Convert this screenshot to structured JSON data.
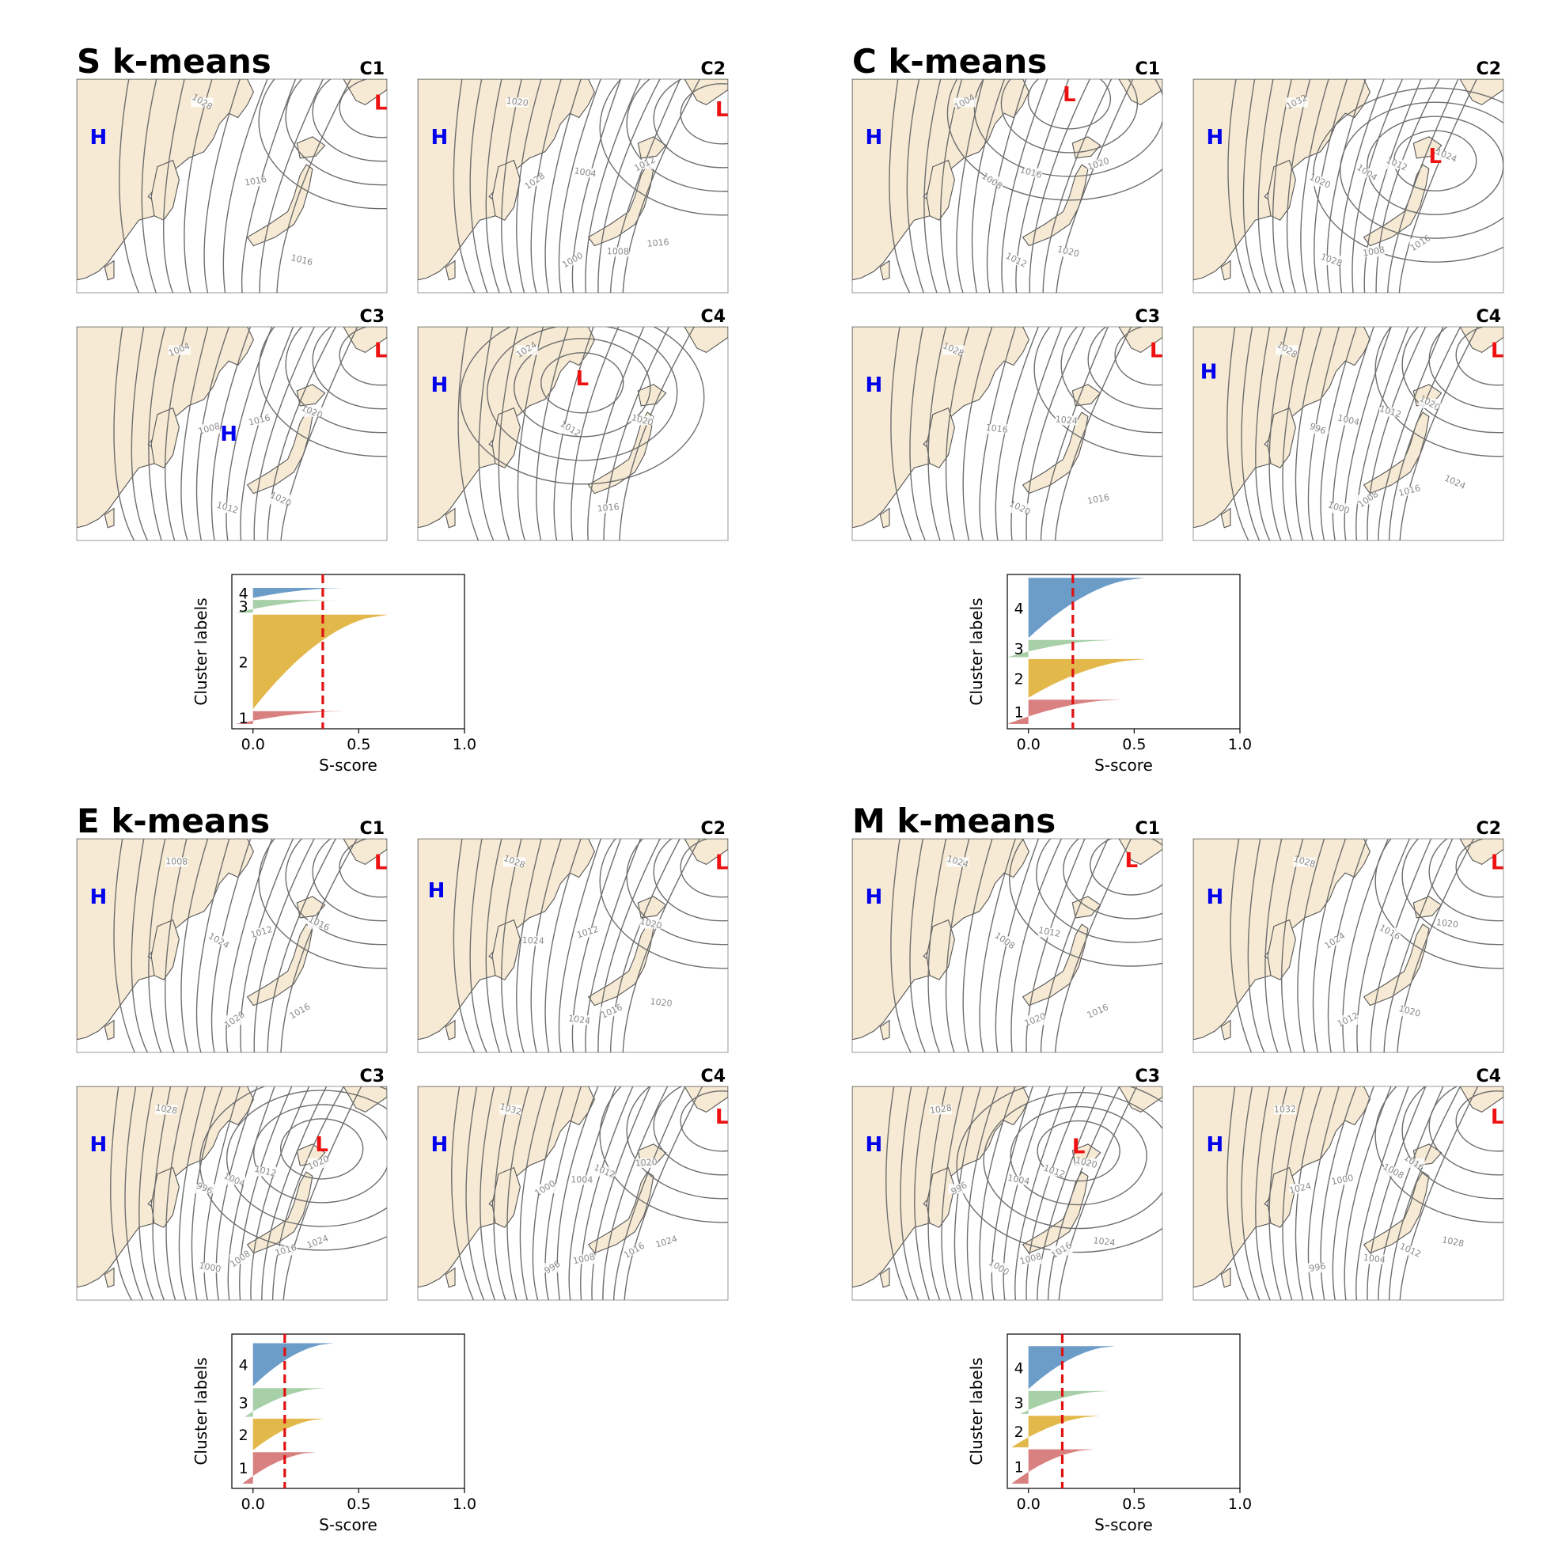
{
  "figure": {
    "colors": {
      "land": "#f6ead4",
      "sea": "#ffffff",
      "isobar": "#6e6e6e",
      "isobar_label": "#8a8a8a",
      "high": "#0000ee",
      "low": "#ee1111",
      "frame": "#999999",
      "coast": "#555555",
      "mean_line": "#e01010"
    },
    "high_symbol": "H",
    "low_symbol": "L"
  },
  "panels": [
    {
      "title": "S k-means",
      "maps": [
        {
          "label": "C1",
          "highs": [
            [
              0.07,
              0.27
            ]
          ],
          "lows": [
            [
              0.98,
              0.11
            ]
          ],
          "isobar_labels": [
            "1028",
            "1016",
            "1016"
          ]
        },
        {
          "label": "C2",
          "highs": [
            [
              0.07,
              0.27
            ]
          ],
          "lows": [
            [
              0.98,
              0.14
            ]
          ],
          "isobar_labels": [
            "1020",
            "1028",
            "1000",
            "1004",
            "1008",
            "1012",
            "1016"
          ]
        },
        {
          "label": "C3",
          "highs": [
            [
              0.49,
              0.5
            ]
          ],
          "lows": [
            [
              0.98,
              0.11
            ]
          ],
          "isobar_labels": [
            "1004",
            "1008",
            "1012",
            "1016",
            "1020",
            "1020"
          ]
        },
        {
          "label": "C4",
          "highs": [
            [
              0.07,
              0.27
            ]
          ],
          "lows": [
            [
              0.53,
              0.24
            ]
          ],
          "isobar_labels": [
            "1024",
            "1012",
            "1016",
            "1020"
          ]
        }
      ],
      "chart_data": {
        "type": "silhouette",
        "xlabel": "S-score",
        "ylabel": "Cluster labels",
        "xlim": [
          -0.1,
          1.0
        ],
        "xticks": [
          "0.0",
          "0.5",
          "1.0"
        ],
        "mean_score": 0.33,
        "clusters": [
          {
            "label": "1",
            "color": "#d98080",
            "max": 0.44,
            "min": -0.08,
            "share": 0.09
          },
          {
            "label": "2",
            "color": "#e3b84b",
            "max": 0.64,
            "min": 0.0,
            "share": 0.66
          },
          {
            "label": "3",
            "color": "#a8d0a8",
            "max": 0.39,
            "min": -0.08,
            "share": 0.09
          },
          {
            "label": "4",
            "color": "#6c9cc8",
            "max": 0.43,
            "min": 0.0,
            "share": 0.07
          }
        ]
      }
    },
    {
      "title": "C k-means",
      "maps": [
        {
          "label": "C1",
          "highs": [
            [
              0.07,
              0.27
            ]
          ],
          "lows": [
            [
              0.7,
              0.07
            ]
          ],
          "isobar_labels": [
            "1004",
            "1008",
            "1012",
            "1016",
            "1020",
            "1020"
          ]
        },
        {
          "label": "C2",
          "highs": [
            [
              0.07,
              0.27
            ]
          ],
          "lows": [
            [
              0.78,
              0.36
            ]
          ],
          "isobar_labels": [
            "1032",
            "1020",
            "1028",
            "1004",
            "1008",
            "1012",
            "1016",
            "1024"
          ]
        },
        {
          "label": "C3",
          "highs": [
            [
              0.07,
              0.27
            ]
          ],
          "lows": [
            [
              0.98,
              0.11
            ]
          ],
          "isobar_labels": [
            "1028",
            "1016",
            "1020",
            "1024",
            "1016"
          ]
        },
        {
          "label": "C4",
          "highs": [
            [
              0.05,
              0.21
            ]
          ],
          "lows": [
            [
              0.98,
              0.11
            ]
          ],
          "isobar_labels": [
            "1028",
            "996",
            "1000",
            "1004",
            "1008",
            "1012",
            "1016",
            "1020",
            "1024"
          ]
        }
      ],
      "chart_data": {
        "type": "silhouette",
        "xlabel": "S-score",
        "ylabel": "Cluster labels",
        "xlim": [
          -0.1,
          1.0
        ],
        "xticks": [
          "0.0",
          "0.5",
          "1.0"
        ],
        "mean_score": 0.21,
        "clusters": [
          {
            "label": "1",
            "color": "#d98080",
            "max": 0.44,
            "min": -0.1,
            "share": 0.17
          },
          {
            "label": "2",
            "color": "#e3b84b",
            "max": 0.56,
            "min": 0.0,
            "share": 0.27
          },
          {
            "label": "3",
            "color": "#a8d0a8",
            "max": 0.41,
            "min": -0.1,
            "share": 0.12
          },
          {
            "label": "4",
            "color": "#6c9cc8",
            "max": 0.55,
            "min": 0.0,
            "share": 0.42
          }
        ]
      }
    },
    {
      "title": "E k-means",
      "maps": [
        {
          "label": "C1",
          "highs": [
            [
              0.07,
              0.27
            ]
          ],
          "lows": [
            [
              0.98,
              0.11
            ]
          ],
          "isobar_labels": [
            "1008",
            "1024",
            "1020",
            "1012",
            "1016",
            "1016"
          ]
        },
        {
          "label": "C2",
          "highs": [
            [
              0.06,
              0.24
            ]
          ],
          "lows": [
            [
              0.98,
              0.11
            ]
          ],
          "isobar_labels": [
            "1028",
            "1024",
            "1024",
            "1012",
            "1016",
            "1020",
            "1020"
          ]
        },
        {
          "label": "C3",
          "highs": [
            [
              0.07,
              0.27
            ]
          ],
          "lows": [
            [
              0.79,
              0.27
            ]
          ],
          "isobar_labels": [
            "1028",
            "996",
            "1000",
            "1004",
            "1008",
            "1012",
            "1016",
            "1020",
            "1024"
          ]
        },
        {
          "label": "C4",
          "highs": [
            [
              0.07,
              0.27
            ]
          ],
          "lows": [
            [
              0.98,
              0.14
            ]
          ],
          "isobar_labels": [
            "1032",
            "1000",
            "996",
            "1004",
            "1008",
            "1012",
            "1016",
            "1020",
            "1024"
          ]
        }
      ],
      "chart_data": {
        "type": "silhouette",
        "xlabel": "S-score",
        "ylabel": "Cluster labels",
        "xlim": [
          -0.1,
          1.0
        ],
        "xticks": [
          "0.0",
          "0.5",
          "1.0"
        ],
        "mean_score": 0.15,
        "clusters": [
          {
            "label": "1",
            "color": "#d98080",
            "max": 0.3,
            "min": -0.05,
            "share": 0.22
          },
          {
            "label": "2",
            "color": "#e3b84b",
            "max": 0.34,
            "min": 0.0,
            "share": 0.22
          },
          {
            "label": "3",
            "color": "#a8d0a8",
            "max": 0.34,
            "min": -0.04,
            "share": 0.2
          },
          {
            "label": "4",
            "color": "#6c9cc8",
            "max": 0.38,
            "min": 0.0,
            "share": 0.3
          }
        ]
      }
    },
    {
      "title": "M k-means",
      "maps": [
        {
          "label": "C1",
          "highs": [
            [
              0.07,
              0.27
            ]
          ],
          "lows": [
            [
              0.9,
              0.1
            ]
          ],
          "isobar_labels": [
            "1024",
            "1008",
            "1020",
            "1012",
            "1016"
          ]
        },
        {
          "label": "C2",
          "highs": [
            [
              0.07,
              0.27
            ]
          ],
          "lows": [
            [
              0.98,
              0.11
            ]
          ],
          "isobar_labels": [
            "1028",
            "1024",
            "1012",
            "1016",
            "1020",
            "1020"
          ]
        },
        {
          "label": "C3",
          "highs": [
            [
              0.07,
              0.27
            ]
          ],
          "lows": [
            [
              0.73,
              0.28
            ]
          ],
          "isobar_labels": [
            "1028",
            "996",
            "1000",
            "1004",
            "1008",
            "1012",
            "1016",
            "1020",
            "1024"
          ]
        },
        {
          "label": "C4",
          "highs": [
            [
              0.07,
              0.27
            ]
          ],
          "lows": [
            [
              0.98,
              0.14
            ]
          ],
          "isobar_labels": [
            "1032",
            "1024",
            "996",
            "1000",
            "1004",
            "1008",
            "1012",
            "1016",
            "1028"
          ]
        }
      ],
      "chart_data": {
        "type": "silhouette",
        "xlabel": "S-score",
        "ylabel": "Cluster labels",
        "xlim": [
          -0.1,
          1.0
        ],
        "xticks": [
          "0.0",
          "0.5",
          "1.0"
        ],
        "mean_score": 0.16,
        "clusters": [
          {
            "label": "1",
            "color": "#d98080",
            "max": 0.31,
            "min": -0.08,
            "share": 0.24
          },
          {
            "label": "2",
            "color": "#e3b84b",
            "max": 0.34,
            "min": -0.08,
            "share": 0.22
          },
          {
            "label": "3",
            "color": "#a8d0a8",
            "max": 0.38,
            "min": -0.04,
            "share": 0.16
          },
          {
            "label": "4",
            "color": "#6c9cc8",
            "max": 0.41,
            "min": 0.0,
            "share": 0.3
          }
        ]
      }
    }
  ]
}
